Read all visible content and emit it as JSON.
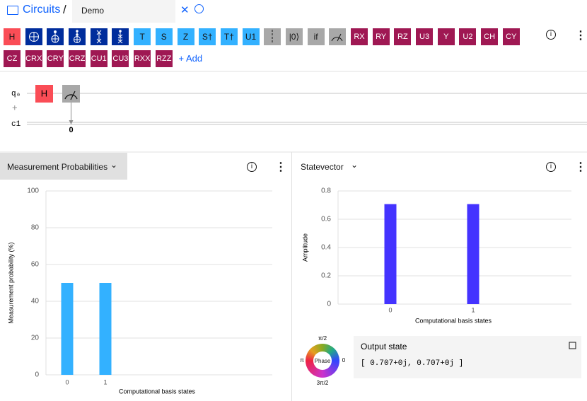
{
  "header": {
    "breadcrumb": "Circuits",
    "separator": "/",
    "tab": "Demo"
  },
  "palette": {
    "row1": [
      "H",
      "T",
      "S",
      "Z",
      "S†",
      "T†",
      "U1",
      "|0⟩",
      "if",
      "RX",
      "RY",
      "RZ",
      "U3",
      "Y",
      "U2",
      "CH",
      "CY"
    ],
    "row2": [
      "CZ",
      "CRX",
      "CRY",
      "CRZ",
      "CU1",
      "CU3",
      "RXX",
      "RZZ"
    ],
    "add": "+ Add"
  },
  "circuit": {
    "qubit": "q₀",
    "add_qubit": "+",
    "classical": "c1",
    "gate": "H",
    "measure_bit": "0"
  },
  "chart_data": [
    {
      "type": "bar",
      "title": "Measurement Probabilities",
      "ylabel": "Measurement probability (%)",
      "xlabel": "Computational basis states",
      "categories": [
        "0",
        "1"
      ],
      "values": [
        50,
        50
      ],
      "color": "#33b1ff",
      "ylim": [
        0,
        100
      ],
      "yticks": [
        0,
        20,
        40,
        60,
        80,
        100
      ],
      "grid": true
    },
    {
      "type": "bar",
      "title": "Statevector",
      "ylabel": "Amplitude",
      "xlabel": "Computational basis states",
      "categories": [
        "0",
        "1"
      ],
      "values": [
        0.707,
        0.707
      ],
      "color": "#4433ff",
      "ylim": [
        0,
        0.8
      ],
      "yticks": [
        0,
        0.2,
        0.4,
        0.6,
        0.8
      ],
      "grid": true
    }
  ],
  "phase_wheel": {
    "label": "Phase",
    "top": "π/2",
    "left": "π",
    "right": "0",
    "bottom": "3π/2"
  },
  "output_state": {
    "title": "Output state",
    "value": "[ 0.707+0j, 0.707+0j ]"
  }
}
